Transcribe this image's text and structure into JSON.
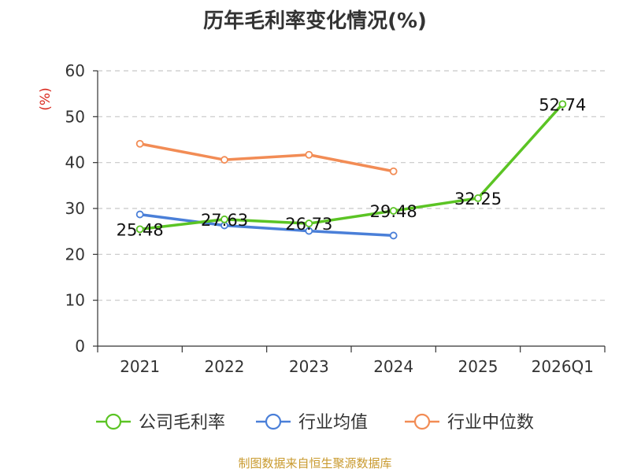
{
  "chart_data": {
    "type": "line",
    "title": "历年毛利率变化情况(%)",
    "ylabel": "(%)",
    "xlabel": "",
    "ylim": [
      0,
      60
    ],
    "yticks": [
      0,
      10,
      20,
      30,
      40,
      50,
      60
    ],
    "categories": [
      "2021",
      "2022",
      "2023",
      "2024",
      "2025",
      "2026Q1"
    ],
    "series": [
      {
        "name": "公司毛利率",
        "color": "#5bc424",
        "values": [
          25.48,
          27.63,
          26.73,
          29.48,
          32.25,
          52.74
        ],
        "labels": [
          "25.48",
          "27.63",
          "26.73",
          "29.48",
          "32.25",
          "52.74"
        ]
      },
      {
        "name": "行业均值",
        "color": "#4a7fd8",
        "values": [
          28.7,
          26.3,
          25.1,
          24.1,
          null,
          null
        ]
      },
      {
        "name": "行业中位数",
        "color": "#f28c55",
        "values": [
          44.1,
          40.6,
          41.7,
          38.1,
          null,
          null
        ]
      }
    ],
    "grid": true,
    "legend": "bottom"
  },
  "source": "制图数据来自恒生聚源数据库"
}
